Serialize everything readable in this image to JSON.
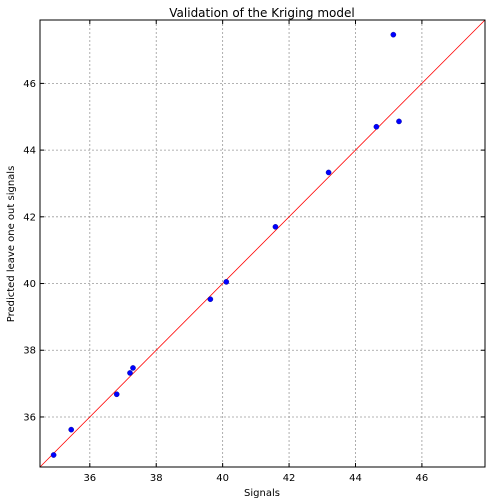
{
  "chart_data": {
    "type": "scatter",
    "title": "Validation of the Kriging model",
    "xlabel": "Signals",
    "ylabel": "Predicted leave one out signals",
    "xlim": [
      34.5,
      47.9
    ],
    "ylim": [
      34.5,
      47.9
    ],
    "xticks": [
      36,
      38,
      40,
      42,
      44,
      46
    ],
    "yticks": [
      36,
      38,
      40,
      42,
      44,
      46
    ],
    "xtick_labels": [
      "36",
      "38",
      "40",
      "42",
      "44",
      "46"
    ],
    "ytick_labels": [
      "36",
      "38",
      "40",
      "42",
      "44",
      "46"
    ],
    "grid": true,
    "series": [
      {
        "x": [
          34.91,
          35.44,
          36.81,
          37.21,
          37.3,
          39.63,
          40.11,
          41.59,
          43.19,
          44.63,
          45.14,
          45.31
        ],
        "y": [
          34.86,
          35.62,
          36.68,
          37.32,
          37.47,
          39.53,
          40.05,
          41.7,
          43.33,
          44.7,
          47.46,
          44.86
        ],
        "color": "#0000ff"
      }
    ],
    "reference_line": {
      "type": "y=x",
      "color": "#ff0000"
    }
  }
}
